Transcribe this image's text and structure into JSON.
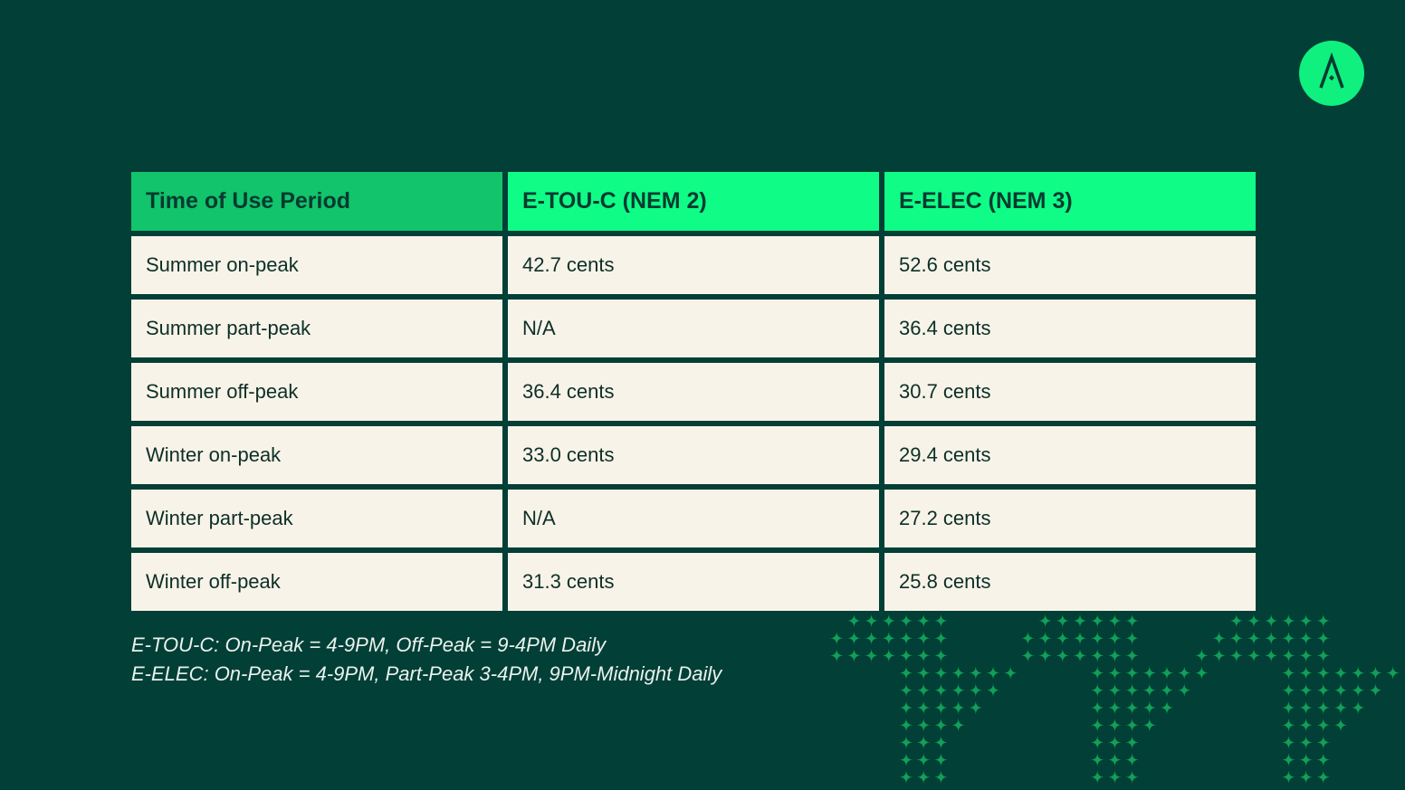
{
  "colors": {
    "background": "#023f36",
    "header_accent": "#0ffd87",
    "header_first": "#12c46b",
    "cell_bg": "#f8f3e8",
    "pattern": "#10a058",
    "logo": "#0ff07f"
  },
  "logo": {
    "letter": "A",
    "icon": "brand-logo-a"
  },
  "table": {
    "headers": [
      "Time of Use Period",
      "E-TOU-C (NEM 2)",
      "E-ELEC (NEM 3)"
    ],
    "rows": [
      [
        "Summer on-peak",
        "42.7 cents",
        "52.6 cents"
      ],
      [
        "Summer part-peak",
        "N/A",
        "36.4 cents"
      ],
      [
        "Summer off-peak",
        "36.4 cents",
        "30.7 cents"
      ],
      [
        "Winter on-peak",
        "33.0 cents",
        "29.4 cents"
      ],
      [
        "Winter part-peak",
        "N/A",
        "27.2 cents"
      ],
      [
        "Winter off-peak",
        "31.3 cents",
        "25.8 cents"
      ]
    ]
  },
  "notes": [
    "E-TOU-C: On-Peak = 4-9PM, Off-Peak = 9-4PM Daily",
    "E-ELEC: On-Peak = 4-9PM, Part-Peak 3-4PM, 9PM-Midnight Daily"
  ]
}
